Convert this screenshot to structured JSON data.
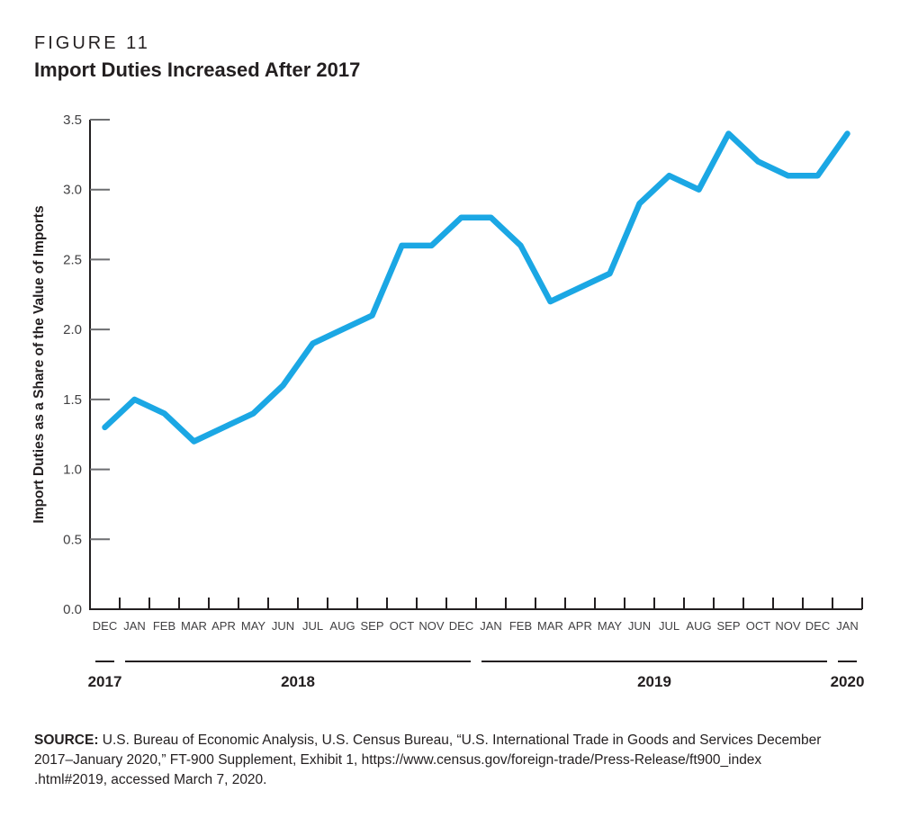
{
  "figure": {
    "label": "FIGURE 11",
    "title": "Import Duties Increased After 2017"
  },
  "chart_data": {
    "type": "line",
    "title": "Import Duties Increased After 2017",
    "figure_label": "FIGURE 11",
    "xlabel": "",
    "ylabel": "Import Duties as a Share of the Value of Imports",
    "ylim": [
      0.0,
      3.5
    ],
    "yticks": [
      0.0,
      0.5,
      1.0,
      1.5,
      2.0,
      2.5,
      3.0,
      3.5
    ],
    "grid": false,
    "legend": "none",
    "line_color": "#1BA7E4",
    "axis_color": "#231F20",
    "tick_color": "#6D6E71",
    "label_color": "#414042",
    "categories": [
      "DEC",
      "JAN",
      "FEB",
      "MAR",
      "APR",
      "MAY",
      "JUN",
      "JUL",
      "AUG",
      "SEP",
      "OCT",
      "NOV",
      "DEC",
      "JAN",
      "FEB",
      "MAR",
      "APR",
      "MAY",
      "JUN",
      "JUL",
      "AUG",
      "SEP",
      "OCT",
      "NOV",
      "DEC",
      "JAN"
    ],
    "values": [
      1.3,
      1.5,
      1.4,
      1.2,
      1.3,
      1.4,
      1.6,
      1.9,
      2.0,
      2.1,
      2.6,
      2.6,
      2.8,
      2.8,
      2.6,
      2.2,
      2.3,
      2.4,
      2.9,
      3.1,
      3.0,
      3.4,
      3.2,
      3.1,
      3.1,
      3.4
    ],
    "year_groups": [
      {
        "label": "2017",
        "months": 1
      },
      {
        "label": "2018",
        "months": 12
      },
      {
        "label": "2019",
        "months": 12
      },
      {
        "label": "2020",
        "months": 1
      }
    ]
  },
  "source": {
    "label": "SOURCE:",
    "lines": [
      "U.S. Bureau of Economic Analysis, U.S. Census Bureau, “U.S. International Trade in Goods and Services December",
      "2017–January 2020,” FT-900 Supplement, Exhibit 1, https://www.census.gov/foreign-trade/Press-Release/ft900_index",
      ".html#2019, accessed March 7, 2020."
    ]
  }
}
